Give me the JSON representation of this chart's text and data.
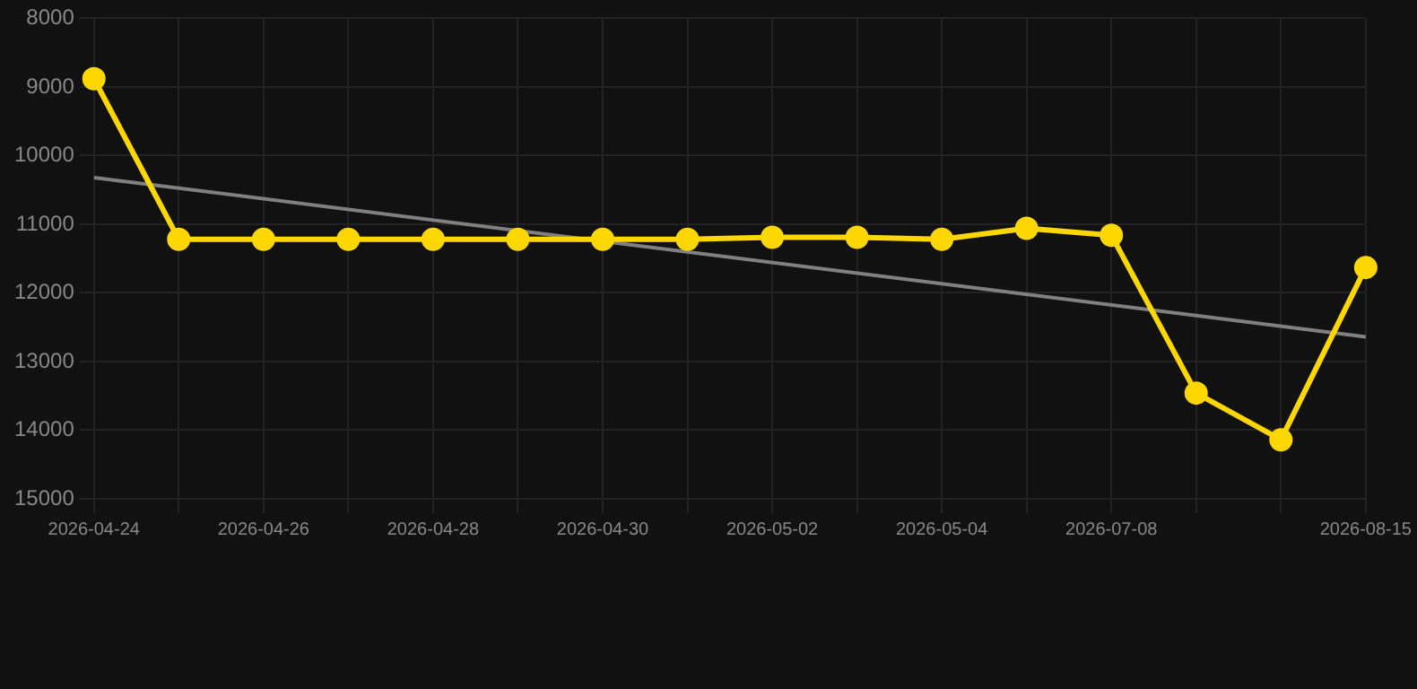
{
  "chart_data": {
    "type": "line",
    "categories": [
      "2026-04-24",
      null,
      "2026-04-26",
      null,
      "2026-04-28",
      null,
      "2026-04-30",
      null,
      "2026-05-02",
      null,
      "2026-05-04",
      null,
      "2026-07-08",
      null,
      null,
      "2026-08-15"
    ],
    "series": [
      {
        "color": "#ffd700",
        "marker": "circle",
        "values": [
          8880,
          11220,
          11220,
          11220,
          11220,
          11220,
          11220,
          11220,
          11190,
          11190,
          11220,
          11060,
          11160,
          13460,
          14140,
          11630
        ]
      },
      {
        "color": "#808080",
        "marker": "none",
        "values": [
          10320,
          null,
          null,
          null,
          null,
          null,
          null,
          null,
          null,
          null,
          null,
          null,
          null,
          null,
          null,
          12640
        ]
      }
    ],
    "ylim": [
      15000,
      8000
    ],
    "yticks": [
      8000,
      9000,
      10000,
      11000,
      12000,
      13000,
      14000,
      15000
    ],
    "grid": true,
    "legend": false
  }
}
